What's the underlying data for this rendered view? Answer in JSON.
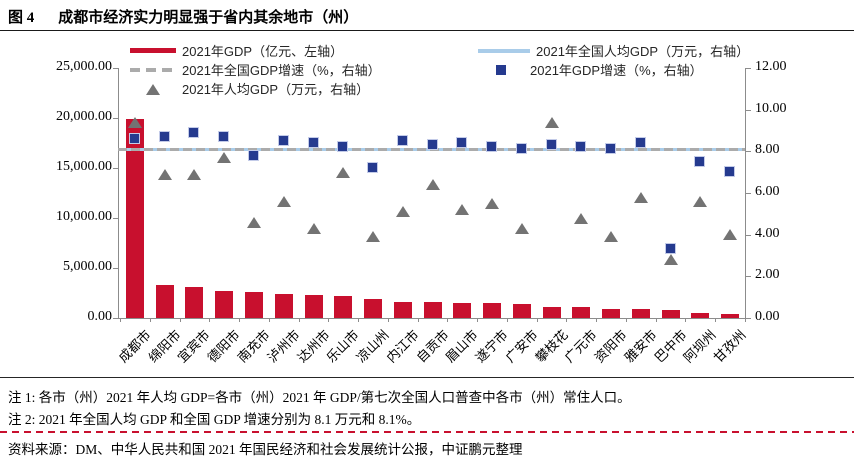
{
  "title": {
    "figure_label": "图 4",
    "text": "成都市经济实力明显强于省内其余地市（州）"
  },
  "legend": {
    "left": [
      {
        "label": "2021年GDP（亿元、左轴）",
        "swatch": "red-bar-line"
      },
      {
        "label": "2021年全国GDP增速（%，右轴）",
        "swatch": "gray-dashed-line"
      },
      {
        "label": "2021年人均GDP（万元，右轴）",
        "swatch": "gray-triangle"
      }
    ],
    "right": [
      {
        "label": "2021年全国人均GDP（万元，右轴）",
        "swatch": "lightblue-line"
      },
      {
        "label": "2021年GDP增速（%，右轴）",
        "swatch": "navy-square"
      }
    ]
  },
  "chart_data": {
    "type": "bar",
    "subtype": "combo-bar-scatter-lines",
    "categories": [
      "成都市",
      "绵阳市",
      "宜宾市",
      "德阳市",
      "南充市",
      "泸州市",
      "达州市",
      "乐山市",
      "凉山州",
      "内江市",
      "自贡市",
      "眉山市",
      "遂宁市",
      "广安市",
      "攀枝花",
      "广元市",
      "资阳市",
      "雅安市",
      "巴中市",
      "阿坝州",
      "甘孜州"
    ],
    "series": [
      {
        "name": "2021年GDP（亿元、左轴）",
        "type": "bar",
        "axis": "left",
        "color": "#C8102E",
        "values": [
          19917,
          3350,
          3148,
          2657,
          2602,
          2406,
          2352,
          2205,
          1901,
          1606,
          1601,
          1547,
          1542,
          1420,
          1134,
          1133,
          917,
          904,
          760,
          472,
          449
        ]
      },
      {
        "name": "2021年GDP增速（%，右轴）",
        "type": "scatter",
        "marker": "square",
        "axis": "right",
        "color": "#253A8F",
        "values": [
          8.6,
          8.7,
          8.9,
          8.7,
          7.8,
          8.5,
          8.4,
          8.2,
          7.2,
          8.5,
          8.3,
          8.4,
          8.2,
          8.1,
          8.3,
          8.2,
          8.1,
          8.4,
          3.3,
          7.5,
          7.0
        ]
      },
      {
        "name": "2021年人均GDP（万元，右轴）",
        "type": "scatter",
        "marker": "triangle",
        "axis": "right",
        "color": "#737373",
        "values": [
          9.4,
          6.9,
          6.9,
          7.7,
          4.6,
          5.6,
          4.3,
          7.0,
          3.9,
          5.1,
          6.4,
          5.2,
          5.5,
          4.3,
          9.4,
          4.8,
          3.9,
          5.8,
          2.8,
          5.6,
          4.0
        ]
      },
      {
        "name": "2021年全国人均GDP（万元，右轴）",
        "type": "hline",
        "axis": "right",
        "color": "#A9CCE9",
        "value": 8.1
      },
      {
        "name": "2021年全国GDP增速（%，右轴）",
        "type": "hline-dashed",
        "axis": "right",
        "color": "#ABABAB",
        "value": 8.1
      }
    ],
    "left_axis": {
      "min": 0,
      "max": 25000,
      "tick_values": [
        0,
        5000,
        10000,
        15000,
        20000,
        25000
      ],
      "tick_labels": [
        "0.00",
        "5,000.00",
        "10,000.00",
        "15,000.00",
        "20,000.00",
        "25,000.00"
      ]
    },
    "right_axis": {
      "min": 0,
      "max": 12,
      "tick_values": [
        0,
        2,
        4,
        6,
        8,
        10,
        12
      ],
      "tick_labels": [
        "0.00",
        "2.00",
        "4.00",
        "6.00",
        "8.00",
        "10.00",
        "12.00"
      ]
    },
    "grid": false,
    "legend_position": "top"
  },
  "notes": {
    "note1": "注 1: 各市（州）2021 年人均 GDP=各市（州）2021 年 GDP/第七次全国人口普查中各市（州）常住人口。",
    "note2": "注 2: 2021 年全国人均 GDP 和全国 GDP 增速分别为 8.1 万元和 8.1%。",
    "source": "资料来源：DM、中华人民共和国 2021 年国民经济和社会发展统计公报，中证鹏元整理"
  }
}
